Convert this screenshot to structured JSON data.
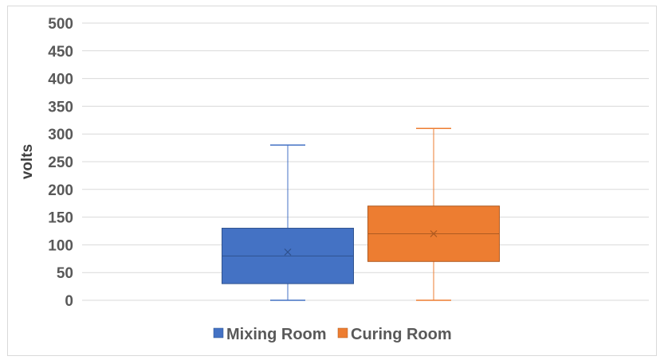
{
  "chart_data": {
    "type": "boxplot",
    "title": "",
    "xlabel": "",
    "ylabel": "volts",
    "ylim": [
      0,
      500
    ],
    "y_ticks": [
      "0",
      "50",
      "100",
      "150",
      "200",
      "250",
      "300",
      "350",
      "400",
      "450",
      "500"
    ],
    "grid": true,
    "legend_position": "bottom",
    "series": [
      {
        "name": "Mixing Room",
        "color": "#4472C4",
        "min": 0,
        "q1": 30,
        "median": 80,
        "mean": 87,
        "q3": 130,
        "max": 280
      },
      {
        "name": "Curing Room",
        "color": "#ED7D31",
        "min": 0,
        "q1": 70,
        "median": 120,
        "mean": 120,
        "q3": 170,
        "max": 310
      }
    ]
  }
}
